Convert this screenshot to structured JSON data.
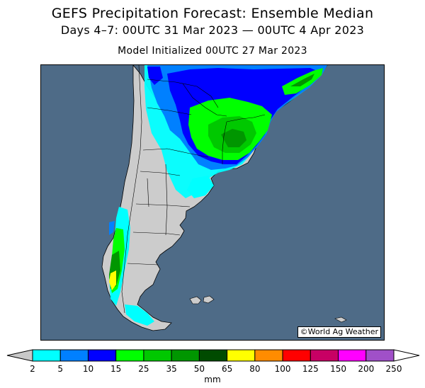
{
  "title": {
    "line1": "GEFS Precipitation Forecast: Ensemble Median",
    "line2": "Days 4–7: 00UTC 31 Mar 2023 — 00UTC 4 Apr 2023",
    "line3": "Model Initialized 00UTC 27 Mar 2023"
  },
  "map": {
    "region": "southern South America",
    "credit": "©World Ag Weather",
    "colors": {
      "ocean": "#4e6b87",
      "land": "#cccccc",
      "borders": "#000000"
    }
  },
  "legend": {
    "units": "mm",
    "ticks": [
      "2",
      "5",
      "10",
      "15",
      "25",
      "35",
      "50",
      "65",
      "80",
      "100",
      "125",
      "150",
      "200",
      "250"
    ],
    "colors": [
      "#00ffff",
      "#0080ff",
      "#0000ff",
      "#00ff00",
      "#00c800",
      "#009600",
      "#004b00",
      "#ffff00",
      "#ff8c00",
      "#ff0000",
      "#c80064",
      "#ff00ff",
      "#a050c8"
    ],
    "below_min_color": "#c8c8c8",
    "above_max_color": "#ffffff"
  }
}
